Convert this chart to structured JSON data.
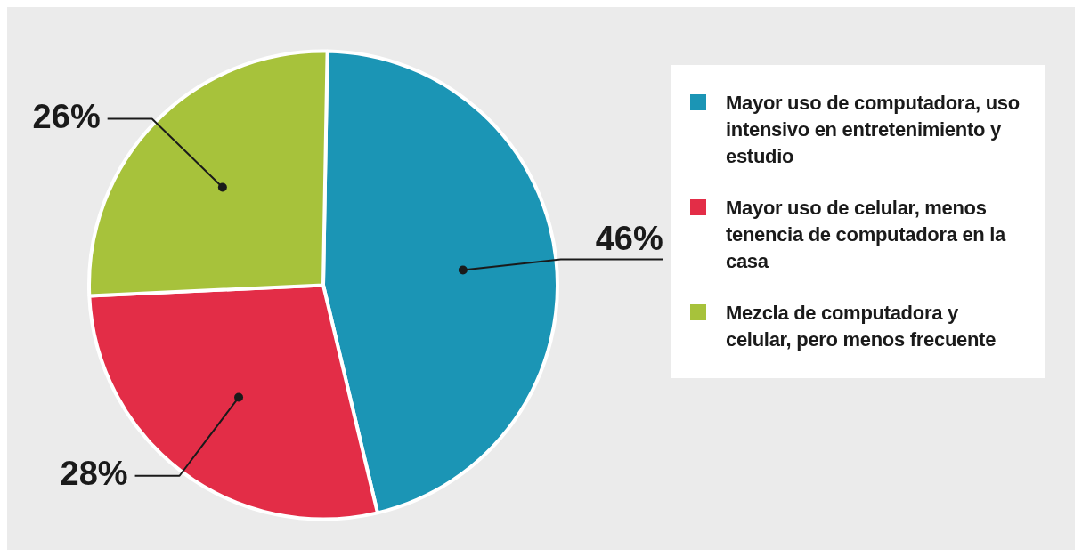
{
  "chart_data": {
    "type": "pie",
    "categories": [
      "Mayor uso de computadora, uso intensivo en entretenimiento y estudio",
      "Mayor uso de celular, menos tenencia de computadora en la casa",
      "Mezcla de computadora y celular, pero menos frecuente"
    ],
    "values": [
      46,
      28,
      26
    ],
    "colors": [
      "#1b95b5",
      "#e32d47",
      "#a7c23b"
    ],
    "value_labels": [
      "46%",
      "28%",
      "26%"
    ],
    "legend": "right"
  }
}
